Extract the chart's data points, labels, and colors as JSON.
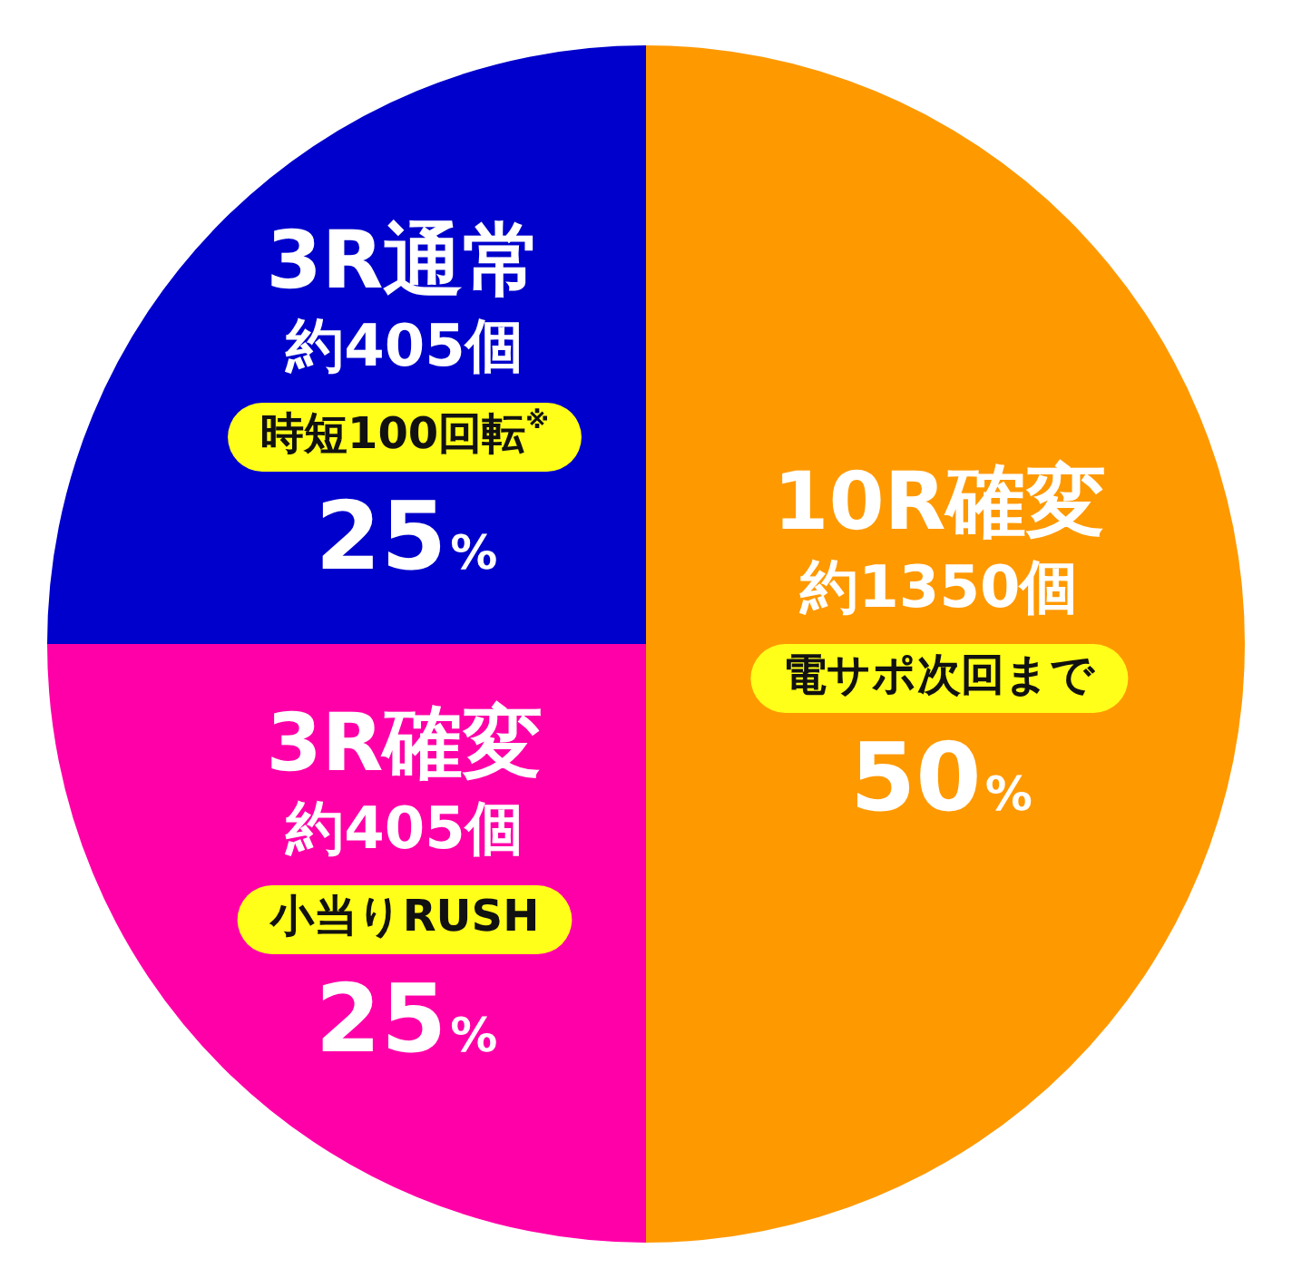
{
  "chart_data": {
    "type": "pie",
    "categories": [
      "10R確変",
      "3R確変",
      "3R通常"
    ],
    "values": [
      50,
      25,
      25
    ],
    "colors": [
      "#ff9900",
      "#ff00a8",
      "#0000cc"
    ],
    "value_labels": [
      "50%",
      "25%",
      "25%"
    ],
    "annotations": [
      {
        "text": "約1350個",
        "x": "10R確変"
      },
      {
        "text": "電サポ次回まで",
        "x": "10R確変"
      },
      {
        "text": "約405個",
        "x": "3R確変"
      },
      {
        "text": "小当りRUSH",
        "x": "3R確変"
      },
      {
        "text": "約405個",
        "x": "3R通常"
      },
      {
        "text": "時短100回転$^{※}$",
        "x": "3R通常"
      }
    ],
    "legend": false
  }
}
